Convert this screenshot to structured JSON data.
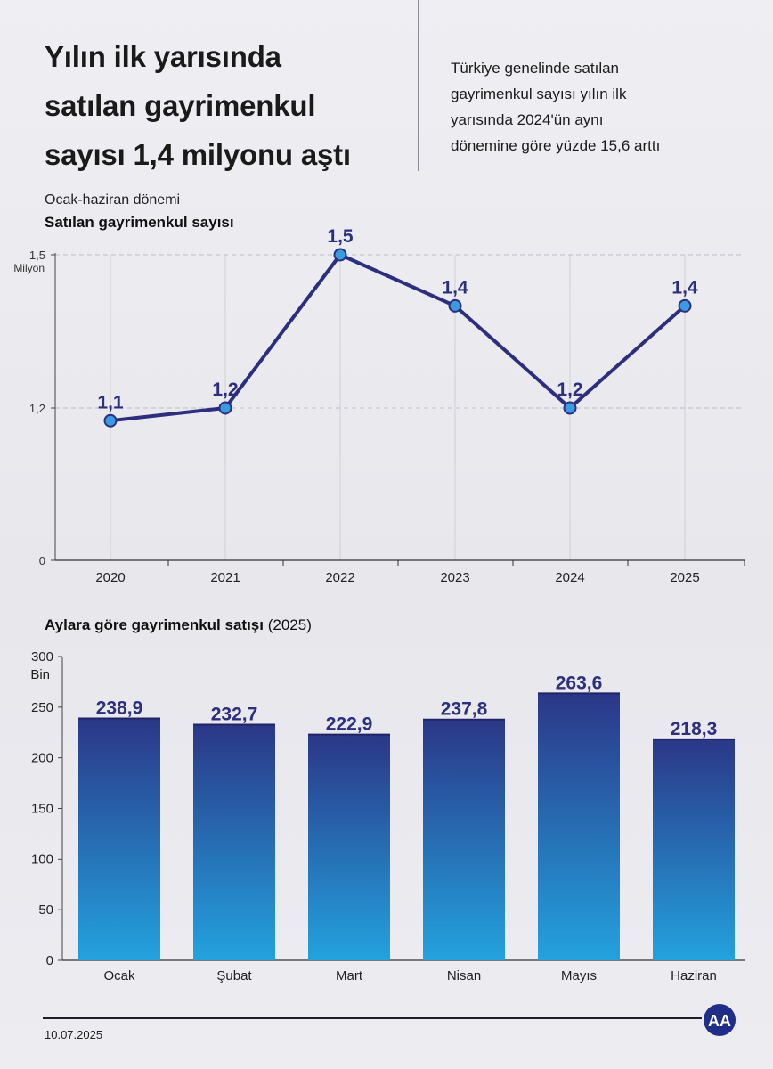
{
  "header": {
    "title_lines": [
      "Yılın ilk yarısında",
      "satılan gayrimenkul",
      "sayısı 1,4 milyonu aştı"
    ],
    "subtitle_lines": [
      "Türkiye genelinde satılan",
      "gayrimenkul sayısı yılın ilk",
      "yarısında 2024'ün aynı",
      "dönemine göre yüzde 15,6 arttı"
    ]
  },
  "chart_data": [
    {
      "type": "line",
      "period_label": "Ocak-haziran dönemi",
      "title": "Satılan gayrimenkul sayısı",
      "unit_label": "Milyon",
      "x": [
        "2020",
        "2021",
        "2022",
        "2023",
        "2024",
        "2025"
      ],
      "values": [
        1.1,
        1.2,
        1.5,
        1.4,
        1.2,
        1.4
      ],
      "data_labels": [
        "1,1",
        "1,2",
        "1,5",
        "1,4",
        "1,2",
        "1,4"
      ],
      "yticks": [
        {
          "v": 0,
          "label": "0"
        },
        {
          "v": 1.2,
          "label": "1,2"
        },
        {
          "v": 1.5,
          "label": "1,5"
        }
      ],
      "y_axis_note": "broken axis: segment from 0 to 1.2 is compressed",
      "line_color": "#2b2f7e",
      "point_color": "#3a9be0",
      "grid": "vertical lines at each year"
    },
    {
      "type": "bar",
      "title": "Aylara göre gayrimenkul satışı",
      "title_suffix": "(2025)",
      "unit_label": "Bin",
      "categories": [
        "Ocak",
        "Şubat",
        "Mart",
        "Nisan",
        "Mayıs",
        "Haziran"
      ],
      "values": [
        238.9,
        232.7,
        222.9,
        237.8,
        263.6,
        218.3
      ],
      "data_labels": [
        "238,9",
        "232,7",
        "222,9",
        "237,8",
        "263,6",
        "218,3"
      ],
      "ylim": [
        0,
        300
      ],
      "yticks": [
        0,
        50,
        100,
        150,
        200,
        250,
        300
      ],
      "bar_gradient": [
        "#2b3787",
        "#23a2de"
      ]
    }
  ],
  "footer": {
    "date": "10.07.2025",
    "logo_text": "AA"
  }
}
